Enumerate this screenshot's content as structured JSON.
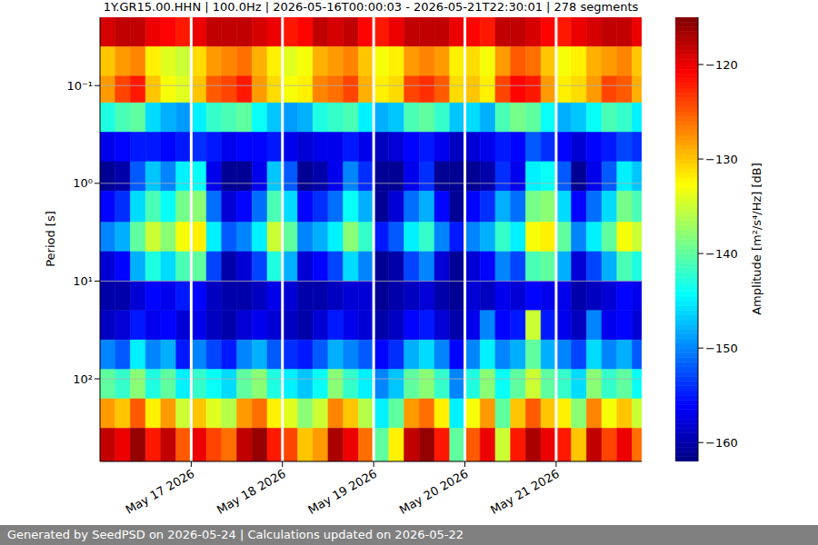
{
  "chart_data": {
    "type": "heatmap",
    "title": "1Y.GR15.00.HHN | 100.0Hz | 2026-05-16T00:00:03 - 2026-05-21T22:30:01 | 278 segments",
    "y_label": "Period [s]",
    "log": "y",
    "grid": true,
    "x_bins": [
      1778889600000,
      1778904000000,
      1778918400000,
      1778932800000,
      1778947200000,
      1778961600000,
      1778976000000,
      1778990400000,
      1779004800000,
      1779019200000,
      1779033600000,
      1779048000000,
      1779062400000,
      1779076800000,
      1779091200000,
      1779105600000,
      1779120000000,
      1779134400000,
      1779148800000,
      1779163200000,
      1779177600000,
      1779192000000,
      1779206400000,
      1779220800000,
      1779235200000,
      1779249600000,
      1779264000000,
      1779278400000,
      1779292800000,
      1779307200000,
      1779321600000,
      1779336000000,
      1779350400000,
      1779364800000,
      1779379200000,
      1779393600000,
      1779408000000
    ],
    "y_bins": [
      0.02,
      0.04,
      0.08,
      0.15,
      0.3,
      0.6,
      1.2,
      2.5,
      5,
      10,
      20,
      40,
      80,
      160,
      320,
      700
    ],
    "values": [
      [
        -119,
        -118,
        -118,
        -120,
        -121,
        -122,
        -120,
        -118,
        -118,
        -118,
        -119,
        -120,
        -122,
        -121,
        -118,
        -119,
        -118,
        -121,
        -122,
        -120,
        -118,
        -118,
        -118,
        -120,
        -121,
        -122,
        -118,
        -118,
        -119,
        -121,
        -122,
        -120,
        -119,
        -118,
        -118,
        -120
      ],
      [
        -130,
        -128,
        -127,
        -132,
        -134,
        -135,
        -131,
        -128,
        -127,
        -126,
        -129,
        -132,
        -134,
        -133,
        -129,
        -128,
        -127,
        -130,
        -133,
        -132,
        -128,
        -127,
        -128,
        -132,
        -131,
        -133,
        -128,
        -125,
        -126,
        -130,
        -133,
        -132,
        -129,
        -128,
        -127,
        -130
      ],
      [
        -128,
        -124,
        -122,
        -130,
        -133,
        -134,
        -130,
        -125,
        -124,
        -122,
        -128,
        -131,
        -133,
        -132,
        -127,
        -126,
        -124,
        -129,
        -132,
        -131,
        -124,
        -123,
        -125,
        -131,
        -130,
        -132,
        -124,
        -121,
        -122,
        -128,
        -132,
        -131,
        -128,
        -124,
        -125,
        -129
      ],
      [
        -143,
        -141,
        -140,
        -146,
        -148,
        -149,
        -145,
        -142,
        -141,
        -140,
        -144,
        -147,
        -149,
        -148,
        -143,
        -142,
        -141,
        -145,
        -148,
        -147,
        -141,
        -140,
        -142,
        -147,
        -146,
        -148,
        -141,
        -139,
        -140,
        -144,
        -148,
        -147,
        -144,
        -141,
        -142,
        -145
      ],
      [
        -157,
        -156,
        -155,
        -155,
        -156,
        -155,
        -154,
        -155,
        -157,
        -156,
        -156,
        -155,
        -157,
        -158,
        -157,
        -157,
        -155,
        -157,
        -159,
        -158,
        -156,
        -155,
        -157,
        -159,
        -158,
        -157,
        -155,
        -156,
        -152,
        -154,
        -156,
        -158,
        -156,
        -155,
        -153,
        -154
      ],
      [
        -161,
        -160,
        -152,
        -147,
        -150,
        -145,
        -144,
        -157,
        -161,
        -161,
        -157,
        -147,
        -152,
        -161,
        -160,
        -157,
        -150,
        -154,
        -161,
        -161,
        -157,
        -154,
        -161,
        -161,
        -161,
        -160,
        -154,
        -157,
        -145,
        -144,
        -152,
        -161,
        -157,
        -152,
        -145,
        -147
      ],
      [
        -156,
        -154,
        -146,
        -141,
        -144,
        -139,
        -138,
        -151,
        -158,
        -156,
        -151,
        -141,
        -146,
        -156,
        -154,
        -151,
        -144,
        -148,
        -161,
        -158,
        -151,
        -148,
        -156,
        -161,
        -156,
        -154,
        -148,
        -151,
        -139,
        -138,
        -146,
        -156,
        -151,
        -146,
        -139,
        -141
      ],
      [
        -150,
        -148,
        -140,
        -135,
        -138,
        -133,
        -132,
        -145,
        -152,
        -150,
        -145,
        -135,
        -140,
        -150,
        -148,
        -145,
        -138,
        -142,
        -155,
        -152,
        -145,
        -142,
        -150,
        -155,
        -150,
        -148,
        -142,
        -145,
        -133,
        -132,
        -140,
        -150,
        -145,
        -140,
        -133,
        -135
      ],
      [
        -158,
        -156,
        -148,
        -143,
        -146,
        -141,
        -140,
        -153,
        -160,
        -158,
        -153,
        -143,
        -148,
        -158,
        -156,
        -153,
        -146,
        -150,
        -161,
        -160,
        -153,
        -150,
        -158,
        -161,
        -158,
        -156,
        -150,
        -153,
        -141,
        -140,
        -148,
        -158,
        -153,
        -148,
        -141,
        -143
      ],
      [
        -160,
        -160,
        -158,
        -156,
        -157,
        -155,
        -156,
        -159,
        -160,
        -160,
        -159,
        -157,
        -158,
        -160,
        -160,
        -159,
        -158,
        -158,
        -161,
        -160,
        -159,
        -158,
        -160,
        -161,
        -158,
        -159,
        -157,
        -158,
        -156,
        -157,
        -157,
        -160,
        -159,
        -158,
        -156,
        -157
      ],
      [
        -159,
        -158,
        -155,
        -157,
        -156,
        -158,
        -157,
        -159,
        -160,
        -158,
        -157,
        -158,
        -159,
        -160,
        -158,
        -155,
        -157,
        -158,
        -160,
        -159,
        -156,
        -155,
        -158,
        -160,
        -157,
        -150,
        -156,
        -155,
        -135,
        -155,
        -157,
        -159,
        -150,
        -157,
        -156,
        -158
      ],
      [
        -150,
        -152,
        -145,
        -150,
        -148,
        -155,
        -150,
        -153,
        -155,
        -150,
        -148,
        -152,
        -154,
        -155,
        -152,
        -148,
        -150,
        -152,
        -156,
        -154,
        -148,
        -146,
        -150,
        -156,
        -150,
        -145,
        -150,
        -148,
        -140,
        -148,
        -150,
        -153,
        -146,
        -150,
        -148,
        -152
      ],
      [
        -140,
        -142,
        -138,
        -143,
        -140,
        -145,
        -142,
        -144,
        -146,
        -140,
        -138,
        -143,
        -145,
        -147,
        -144,
        -138,
        -142,
        -145,
        -150,
        -147,
        -140,
        -138,
        -142,
        -150,
        -143,
        -138,
        -144,
        -140,
        -135,
        -140,
        -142,
        -146,
        -138,
        -142,
        -140,
        -144
      ],
      [
        -128,
        -130,
        -125,
        -132,
        -128,
        -135,
        -130,
        -134,
        -136,
        -128,
        -126,
        -132,
        -134,
        -138,
        -135,
        -127,
        -130,
        -136,
        -145,
        -140,
        -128,
        -126,
        -132,
        -145,
        -133,
        -128,
        -140,
        -130,
        -125,
        -130,
        -132,
        -138,
        -127,
        -133,
        -130,
        -135
      ],
      [
        -118,
        -120,
        -116,
        -122,
        -118,
        -125,
        -120,
        -124,
        -126,
        -118,
        -116,
        -122,
        -124,
        -130,
        -128,
        -117,
        -120,
        -126,
        -140,
        -132,
        -118,
        -116,
        -122,
        -140,
        -125,
        -120,
        -135,
        -122,
        -117,
        -120,
        -122,
        -130,
        -118,
        -124,
        -120,
        -126
      ]
    ],
    "xlim": [
      1778889603000,
      1779402601000
    ],
    "xticks": [
      {
        "value": 1778976000000,
        "label": "May 17 2026"
      },
      {
        "value": 1779062400000,
        "label": "May 18 2026"
      },
      {
        "value": 1779148800000,
        "label": "May 19 2026"
      },
      {
        "value": 1779235200000,
        "label": "May 20 2026"
      },
      {
        "value": 1779321600000,
        "label": "May 21 2026"
      }
    ],
    "ylim": [
      0.02,
      700
    ],
    "yticks": [
      {
        "value": 0.1,
        "label": "10⁻¹"
      },
      {
        "value": 1,
        "label": "10⁰"
      },
      {
        "value": 10,
        "label": "10¹"
      },
      {
        "value": 100,
        "label": "10²"
      }
    ],
    "color_range": [
      -162,
      -115
    ],
    "color_ticks": [
      {
        "value": -120,
        "label": "−120"
      },
      {
        "value": -130,
        "label": "−130"
      },
      {
        "value": -140,
        "label": "−140"
      },
      {
        "value": -150,
        "label": "−150"
      },
      {
        "value": -160,
        "label": "−160"
      }
    ],
    "color_label": "Amplitude [m²/s⁴/Hz] [dB]"
  },
  "footer": "Generated by SeedPSD on 2026-05-24 | Calculations updated on 2026-05-22"
}
